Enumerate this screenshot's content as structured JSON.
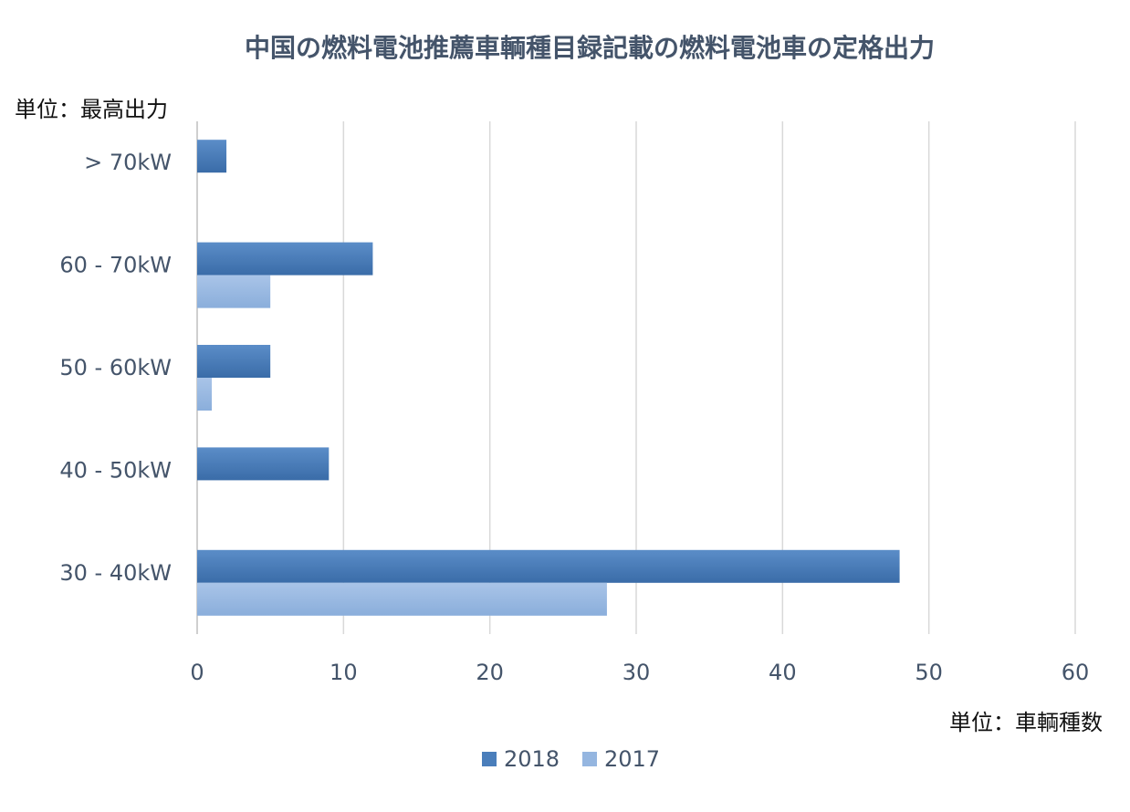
{
  "chart_data": {
    "type": "bar",
    "orientation": "horizontal",
    "title": "中国の燃料電池推薦車輌種目録記載の燃料電池車の定格出力",
    "ylabel": "単位：最高出力",
    "xlabel": "単位：車輌種数",
    "categories": [
      "> 70kW",
      "60 - 70kW",
      "50 - 60kW",
      "40 - 50kW",
      "30 - 40kW"
    ],
    "series": [
      {
        "name": "2018",
        "values": [
          2,
          12,
          5,
          9,
          48
        ],
        "color": "#4a7ebb"
      },
      {
        "name": "2017",
        "values": [
          0,
          5,
          1,
          0,
          28
        ],
        "color": "#95b6e0"
      }
    ],
    "xlim": [
      0,
      60
    ],
    "xticks": [
      0,
      10,
      20,
      30,
      40,
      50,
      60
    ],
    "grid": true,
    "legend_position": "bottom"
  }
}
